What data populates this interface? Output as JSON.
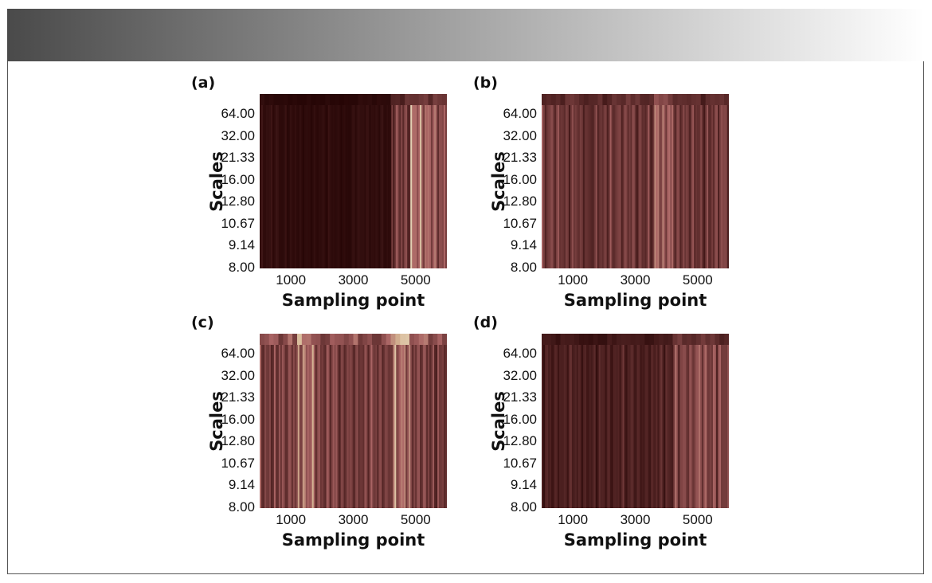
{
  "colors": {
    "banner_from": "#4a4a4a",
    "banner_to": "#ffffff",
    "frame": "#555555"
  },
  "chart_data": [
    {
      "type": "heatmap",
      "panel_label": "(a)",
      "xlabel": "Sampling point",
      "ylabel": "Scales",
      "x_ticks": [
        "1000",
        "3000",
        "5000"
      ],
      "x_tick_values": [
        1000,
        3000,
        5000
      ],
      "xlim": [
        0,
        6000
      ],
      "y_ticks": [
        "64.00",
        "32.00",
        "21.33",
        "16.00",
        "12.80",
        "10.67",
        "9.14",
        "8.00"
      ],
      "colormap": "pink",
      "intensity_by_region": [
        0.15,
        0.12,
        0.1,
        0.12,
        0.1,
        0.14,
        0.12,
        0.55,
        0.9,
        0.75
      ],
      "top_band_intensity": 0.55
    },
    {
      "type": "heatmap",
      "panel_label": "(b)",
      "xlabel": "Sampling point",
      "ylabel": "Scales",
      "x_ticks": [
        "1000",
        "3000",
        "5000"
      ],
      "x_tick_values": [
        1000,
        3000,
        5000
      ],
      "xlim": [
        0,
        6000
      ],
      "y_ticks": [
        "64.00",
        "32.00",
        "21.33",
        "16.00",
        "12.80",
        "10.67",
        "9.14",
        "8.00"
      ],
      "colormap": "pink",
      "intensity_by_region": [
        0.55,
        0.5,
        0.45,
        0.5,
        0.55,
        0.5,
        0.8,
        0.55,
        0.5,
        0.55
      ],
      "top_band_intensity": 0.6
    },
    {
      "type": "heatmap",
      "panel_label": "(c)",
      "xlabel": "Sampling point",
      "ylabel": "Scales",
      "x_ticks": [
        "1000",
        "3000",
        "5000"
      ],
      "x_tick_values": [
        1000,
        3000,
        5000
      ],
      "xlim": [
        0,
        6000
      ],
      "y_ticks": [
        "64.00",
        "32.00",
        "21.33",
        "16.00",
        "12.80",
        "10.67",
        "9.14",
        "8.00"
      ],
      "colormap": "pink",
      "intensity_by_region": [
        0.55,
        0.6,
        0.85,
        0.6,
        0.55,
        0.6,
        0.55,
        0.85,
        0.6,
        0.55
      ],
      "top_band_intensity": 0.95
    },
    {
      "type": "heatmap",
      "panel_label": "(d)",
      "xlabel": "Sampling point",
      "ylabel": "Scales",
      "x_ticks": [
        "1000",
        "3000",
        "5000"
      ],
      "x_tick_values": [
        1000,
        3000,
        5000
      ],
      "xlim": [
        0,
        6000
      ],
      "y_ticks": [
        "64.00",
        "32.00",
        "21.33",
        "16.00",
        "12.80",
        "10.67",
        "9.14",
        "8.00"
      ],
      "colormap": "pink",
      "intensity_by_region": [
        0.3,
        0.3,
        0.28,
        0.3,
        0.32,
        0.3,
        0.35,
        0.6,
        0.7,
        0.6
      ],
      "top_band_intensity": 0.55
    }
  ]
}
